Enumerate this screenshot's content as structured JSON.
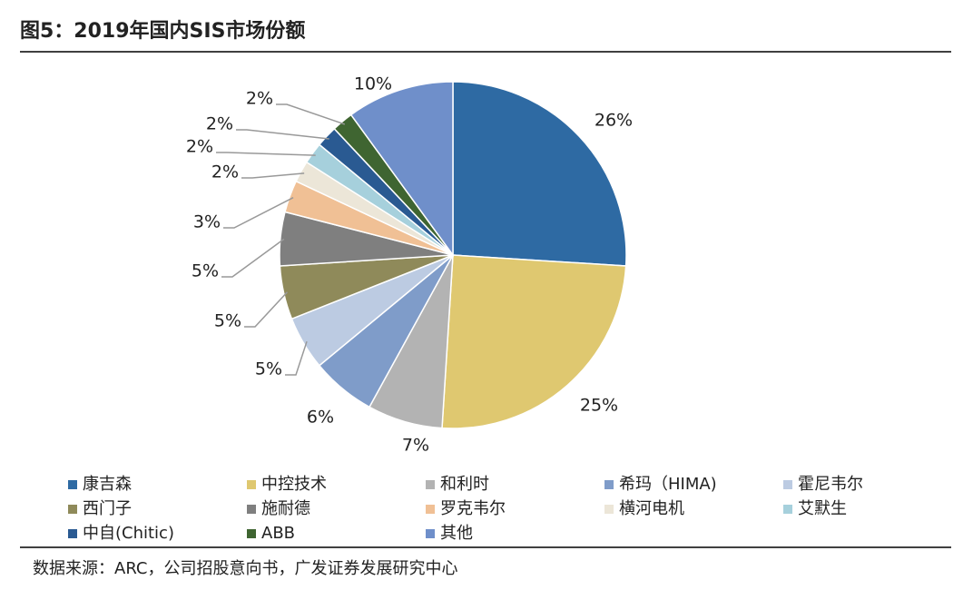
{
  "chart_data": {
    "type": "pie",
    "title": "图5：2019年国内SIS市场份额",
    "categories": [
      "康吉森",
      "中控技术",
      "和利时",
      "希玛（HIMA)",
      "霍尼韦尔",
      "西门子",
      "施耐德",
      "罗克韦尔",
      "横河电机",
      "艾默生",
      "中自(Chitic)",
      "ABB",
      "其他"
    ],
    "values": [
      26,
      25,
      7,
      6,
      5,
      5,
      5,
      3,
      2,
      2,
      2,
      2,
      10
    ],
    "value_labels": [
      "26%",
      "25%",
      "7%",
      "6%",
      "5%",
      "5%",
      "5%",
      "3%",
      "2%",
      "2%",
      "2%",
      "2%",
      "10%"
    ],
    "colors": [
      "#2e6aa3",
      "#dfc870",
      "#b3b3b3",
      "#7f9cc9",
      "#bccbe2",
      "#8f8a5a",
      "#7f7f7f",
      "#f0c095",
      "#ece6d8",
      "#a6d0dc",
      "#2a5a92",
      "#3f6531",
      "#6f8fca"
    ],
    "source": "数据来源：ARC，公司招股意向书，广发证券发展研究中心"
  }
}
